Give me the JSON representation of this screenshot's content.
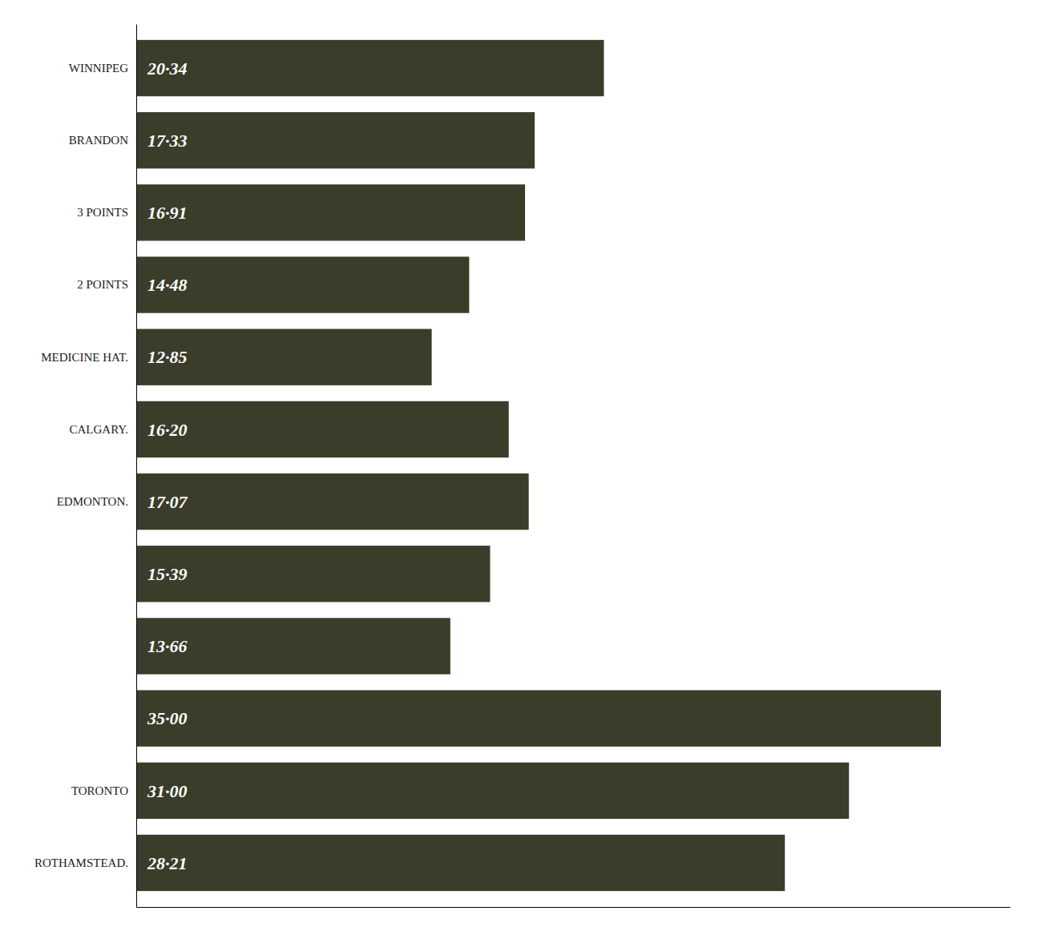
{
  "chart_data": {
    "type": "bar",
    "orientation": "horizontal",
    "categories": [
      "WINNIPEG",
      "BRANDON",
      "3 POINTS",
      "2 POINTS",
      "MEDICINE HAT.",
      "CALGARY.",
      "EDMONTON.",
      null,
      null,
      null,
      "TORONTO",
      "ROTHAMSTEAD."
    ],
    "values": [
      20.34,
      17.33,
      16.91,
      14.48,
      12.85,
      16.2,
      17.07,
      15.39,
      13.66,
      35.0,
      31.0,
      28.21
    ],
    "value_labels": [
      "20·34",
      "17·33",
      "16·91",
      "14·48",
      "12·85",
      "16·20",
      "17·07",
      "15·39",
      "13·66",
      "35·00",
      "31·00",
      "28·21"
    ],
    "data_labels": true,
    "color": "#3a3d2a",
    "xlim": [
      0,
      38
    ],
    "tick_labels": "y",
    "grid": false
  }
}
